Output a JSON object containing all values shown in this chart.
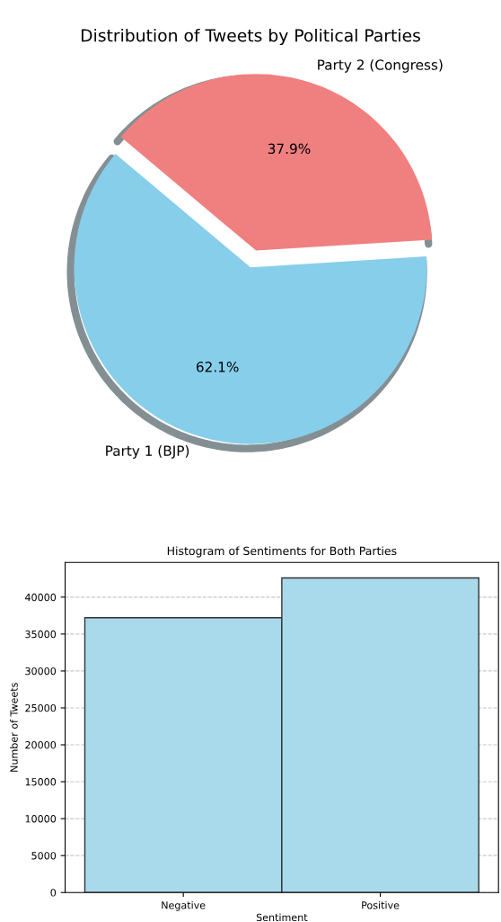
{
  "chart_data": [
    {
      "type": "pie",
      "title": "Distribution of Tweets by Political Parties",
      "categories": [
        "Party 1 (BJP)",
        "Party 2 (Congress)"
      ],
      "values": [
        62.1,
        37.9
      ],
      "colors": [
        "#87ceeb",
        "#f08080"
      ],
      "value_labels": [
        "62.1%",
        "37.9%"
      ]
    },
    {
      "type": "bar",
      "title": "Histogram of Sentiments for Both Parties",
      "xlabel": "Sentiment",
      "ylabel": "Number of Tweets",
      "categories": [
        "Negative",
        "Positive"
      ],
      "values": [
        37200,
        42600
      ],
      "color": "#a8daec",
      "ylim": [
        0,
        44700
      ],
      "yticks": [
        0,
        5000,
        10000,
        15000,
        20000,
        25000,
        30000,
        35000,
        40000
      ],
      "grid": "y"
    }
  ]
}
